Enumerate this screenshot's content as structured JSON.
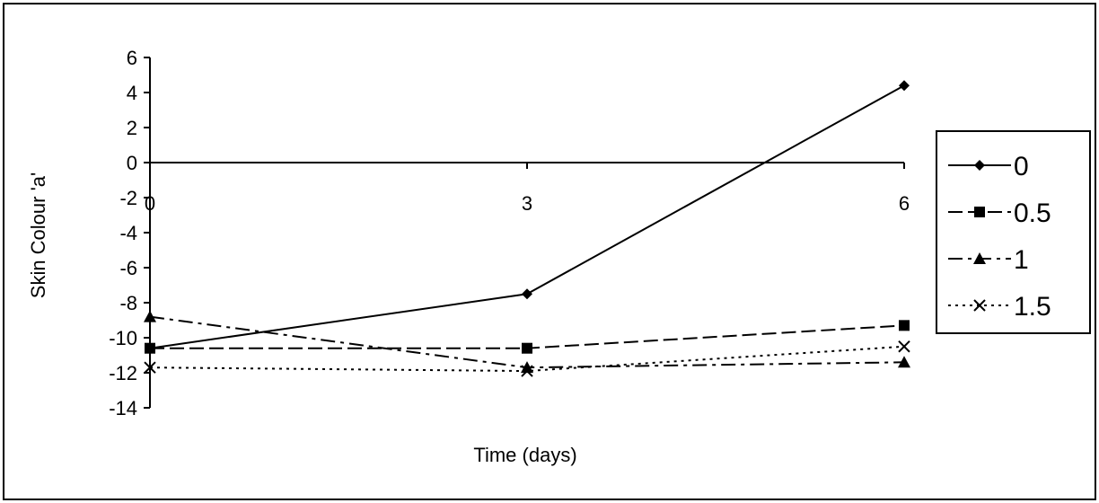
{
  "chart_data": {
    "type": "line",
    "title": "",
    "xlabel": "Time (days)",
    "ylabel": "Skin Colour 'a'",
    "x": [
      0,
      3,
      6
    ],
    "x_tick_labels": [
      "0",
      "3",
      "6"
    ],
    "ylim": [
      -14,
      6
    ],
    "y_ticks": [
      6,
      4,
      2,
      0,
      -2,
      -4,
      -6,
      -8,
      -10,
      -12,
      -14
    ],
    "y_tick_labels": [
      "6",
      "4",
      "2",
      "0",
      "-2",
      "-4",
      "-6",
      "-8",
      "-10",
      "-12",
      "-14"
    ],
    "grid": false,
    "legend_position": "right",
    "series": [
      {
        "name": "0",
        "values": [
          -10.6,
          -7.5,
          4.4
        ],
        "marker": "diamond",
        "dash": "solid",
        "color": "#000000"
      },
      {
        "name": "0.5",
        "values": [
          -10.6,
          -10.6,
          -9.3
        ],
        "marker": "square",
        "dash": "dashed",
        "color": "#000000"
      },
      {
        "name": "1",
        "values": [
          -8.8,
          -11.7,
          -11.4
        ],
        "marker": "triangle",
        "dash": "dashdot",
        "color": "#000000"
      },
      {
        "name": "1.5",
        "values": [
          -11.7,
          -11.9,
          -10.5
        ],
        "marker": "x",
        "dash": "dotted",
        "color": "#000000"
      }
    ]
  }
}
